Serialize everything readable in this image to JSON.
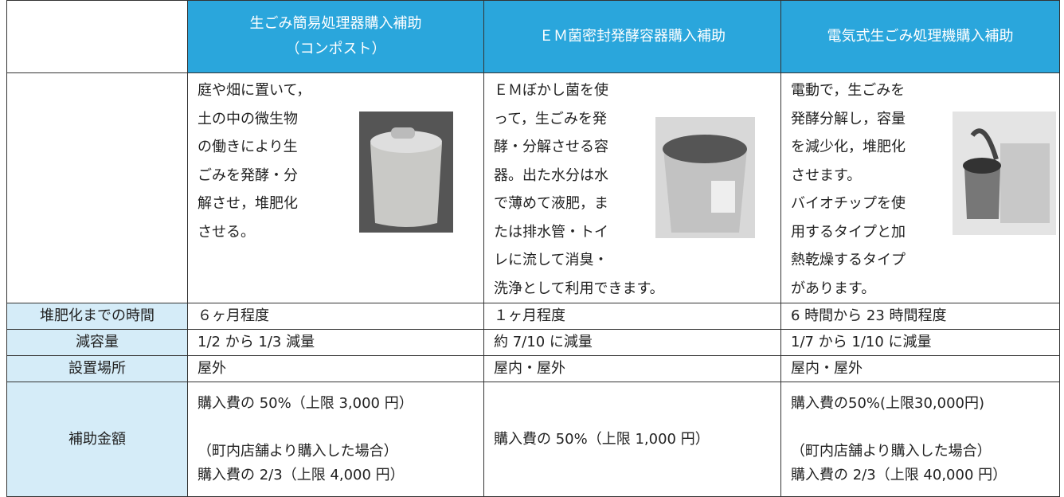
{
  "header": {
    "columns": [
      [
        "生ごみ簡易処理器購入補助",
        "（コンポスト）"
      ],
      [
        "ＥＭ菌密封発酵容器購入補助"
      ],
      [
        "電気式生ごみ処理機購入補助"
      ]
    ]
  },
  "description": [
    [
      "庭や畑に置いて，",
      "土の中の微生物",
      "の働きにより生",
      "ごみを発酵・分",
      "解させ，堆肥化",
      "させる。"
    ],
    [
      "ＥＭぼかし菌を使",
      "って，生ごみを発",
      "酵・分解させる容",
      "器。出た水分は水",
      "で薄めて液肥，ま",
      "たは排水管・トイ",
      "レに流して消臭・",
      "洗浄として利用できます。"
    ],
    [
      "電動で，生ごみを",
      "発酵分解し，容量",
      "を減少化，堆肥化",
      "させます。",
      "バイオチップを使",
      "用するタイプと加",
      "熱乾燥するタイプ",
      "があります。"
    ]
  ],
  "rows": [
    {
      "label": "堆肥化までの時間",
      "cells": [
        "６ヶ月程度",
        "１ヶ月程度",
        "6 時間から 23 時間程度"
      ]
    },
    {
      "label": "減容量",
      "cells": [
        "1/2 から 1/3 減量",
        "約 7/10 に減量",
        "1/7 から 1/10 に減量"
      ]
    },
    {
      "label": "設置場所",
      "cells": [
        "屋外",
        "屋内・屋外",
        "屋内・屋外"
      ]
    }
  ],
  "subsidy": {
    "label": "補助金額",
    "cells": [
      [
        [
          "購入費の 50%（上限 3,000 円）"
        ],
        [
          "（町内店舗より購入した場合）",
          "購入費の 2/3（上限 4,000 円）"
        ]
      ],
      [
        [
          "購入費の 50%（上限 1,000 円）"
        ]
      ],
      [
        [
          "購入費の50%(上限30,000円)"
        ],
        [
          "（町内店舗より購入した場合）",
          "購入費の 2/3（上限 40,000 円）"
        ]
      ]
    ]
  }
}
